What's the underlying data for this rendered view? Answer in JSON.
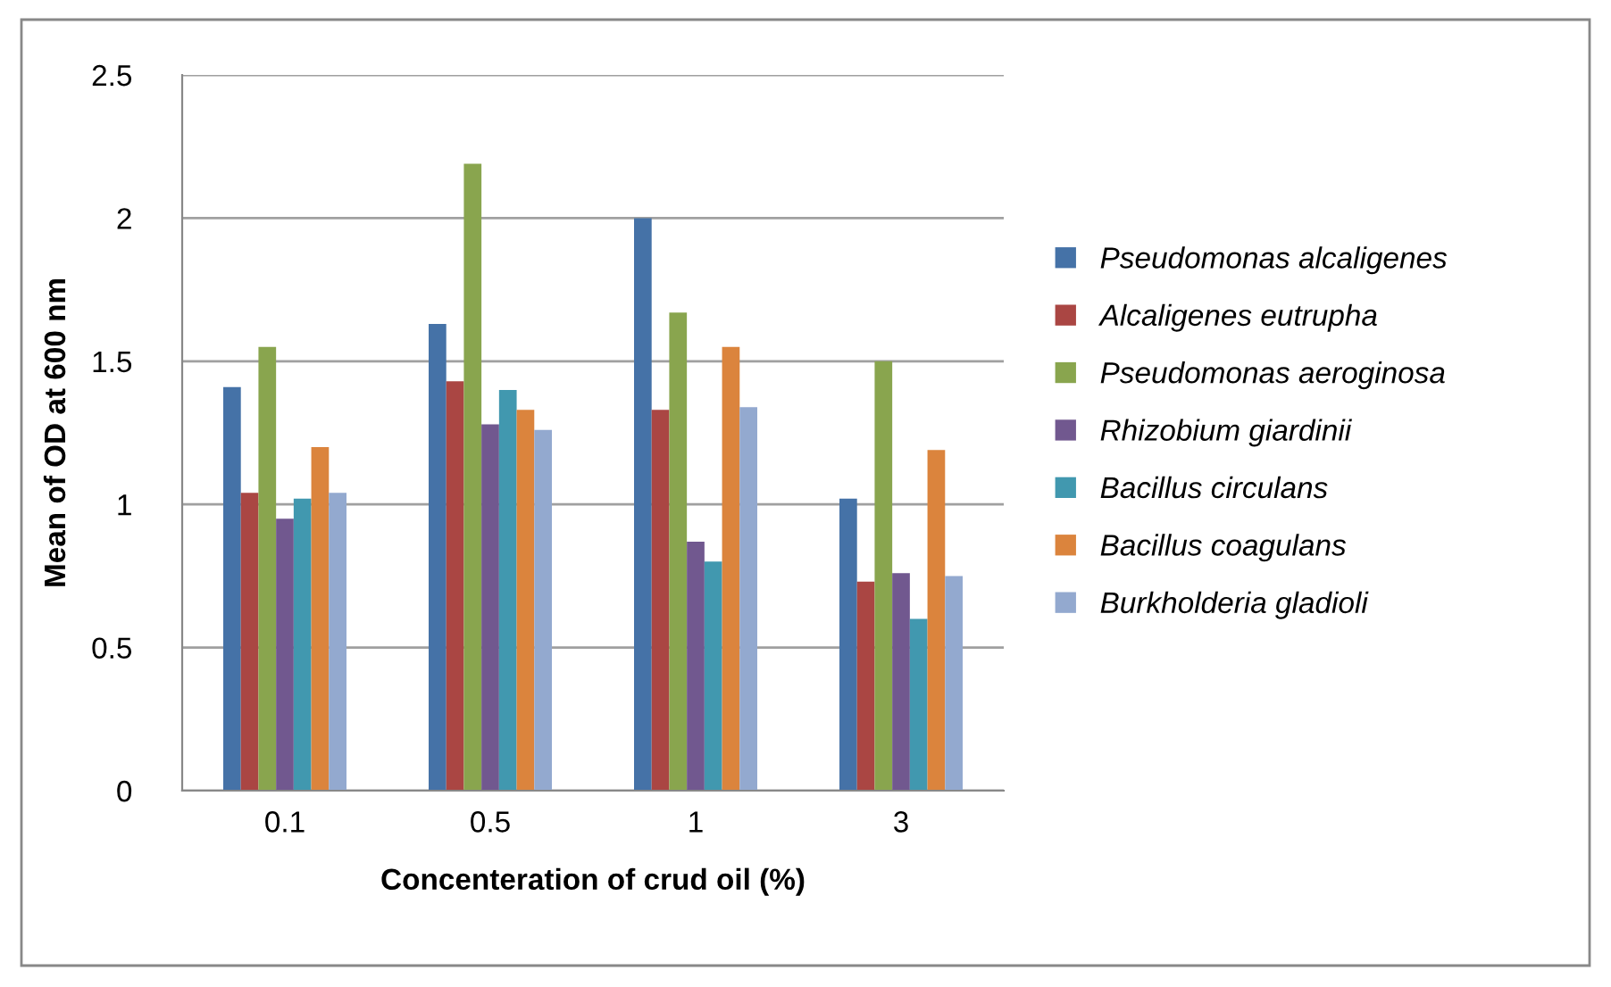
{
  "chart_data": {
    "type": "bar",
    "xlabel": "Concenteration of crud oil (%)",
    "ylabel": "Mean of OD at 600 nm",
    "categories": [
      "0.1",
      "0.5",
      "1",
      "3"
    ],
    "series": [
      {
        "name": "Pseudomonas alcaligenes",
        "color": "#4572a7",
        "values": [
          1.41,
          1.63,
          2.0,
          1.02
        ]
      },
      {
        "name": "Alcaligenes eutrupha",
        "color": "#aa4643",
        "values": [
          1.04,
          1.43,
          1.33,
          0.73
        ]
      },
      {
        "name": "Pseudomonas aeroginosa",
        "color": "#89a54e",
        "values": [
          1.55,
          2.19,
          1.67,
          1.5
        ]
      },
      {
        "name": "Rhizobium giardinii",
        "color": "#71588f",
        "values": [
          0.95,
          1.28,
          0.87,
          0.76
        ]
      },
      {
        "name": "Bacillus circulans",
        "color": "#4198af",
        "values": [
          1.02,
          1.4,
          0.8,
          0.6
        ]
      },
      {
        "name": "Bacillus coagulans",
        "color": "#db843d",
        "values": [
          1.2,
          1.33,
          1.55,
          1.19
        ]
      },
      {
        "name": "Burkholderia gladioli",
        "color": "#93a9cf",
        "values": [
          1.04,
          1.26,
          1.34,
          0.75
        ]
      }
    ],
    "ylim": [
      0,
      2.5
    ],
    "yticks": [
      0,
      0.5,
      1,
      1.5,
      2,
      2.5
    ],
    "grid": "y",
    "legend": "right"
  }
}
